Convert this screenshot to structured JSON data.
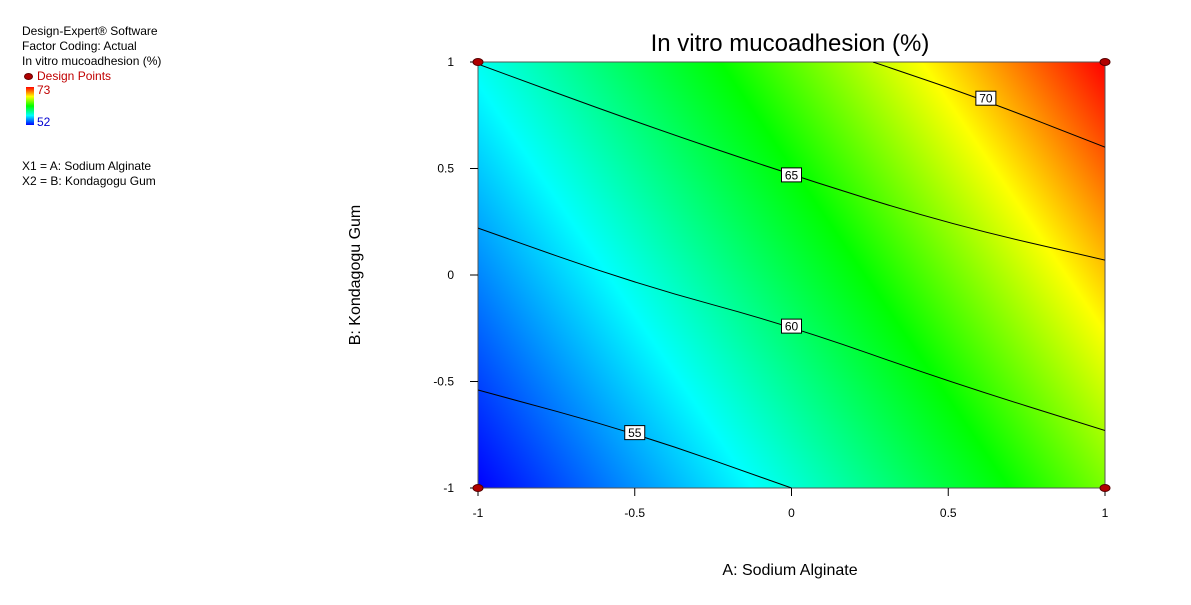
{
  "info": {
    "software": "Design-Expert® Software",
    "coding": "Factor Coding: Actual",
    "response": "In vitro mucoadhesion (%)",
    "design_points_label": "Design Points",
    "scale_max": "73",
    "scale_min": "52",
    "x1_def": "X1 = A: Sodium Alginate",
    "x2_def": "X2 = B: Kondagogu Gum"
  },
  "colors": {
    "high": "#ff0000",
    "mid_high": "#ffff00",
    "mid": "#00ff00",
    "mid_low": "#00ffff",
    "low": "#0000ff",
    "design_point": "#b00000"
  },
  "chart_data": {
    "type": "contour",
    "title": "In vitro mucoadhesion (%)",
    "xlabel": "A: Sodium Alginate",
    "ylabel": "B: Kondagogu Gum",
    "xlim": [
      -1,
      1
    ],
    "ylim": [
      -1,
      1
    ],
    "xticks": [
      "-1",
      "-0.5",
      "0",
      "0.5",
      "1"
    ],
    "yticks": [
      "1",
      "0.5",
      "0",
      "-0.5",
      "-1"
    ],
    "response_range": [
      52,
      73
    ],
    "grid": false,
    "contours": [
      {
        "level": "55",
        "points": [
          [
            -1,
            -0.54
          ],
          [
            -0.5,
            -0.74
          ],
          [
            0,
            -1.0
          ]
        ],
        "label_at": [
          -0.5,
          -0.74
        ]
      },
      {
        "level": "60",
        "points": [
          [
            -1,
            0.22
          ],
          [
            -0.5,
            -0.04
          ],
          [
            0,
            -0.24
          ],
          [
            0.5,
            -0.5
          ],
          [
            1,
            -0.73
          ]
        ],
        "label_at": [
          0,
          -0.24
        ]
      },
      {
        "level": "65",
        "points": [
          [
            -1,
            0.99
          ],
          [
            -0.5,
            0.72
          ],
          [
            0,
            0.47
          ],
          [
            0.5,
            0.24
          ],
          [
            1,
            0.07
          ]
        ],
        "label_at": [
          0,
          0.47
        ]
      },
      {
        "level": "70",
        "points": [
          [
            0.26,
            1.0
          ],
          [
            0.6,
            0.83
          ],
          [
            1,
            0.6
          ]
        ],
        "label_at": [
          0.62,
          0.83
        ]
      }
    ],
    "design_points": [
      [
        -1,
        1
      ],
      [
        1,
        1
      ],
      [
        -1,
        -1
      ],
      [
        1,
        -1
      ]
    ]
  }
}
